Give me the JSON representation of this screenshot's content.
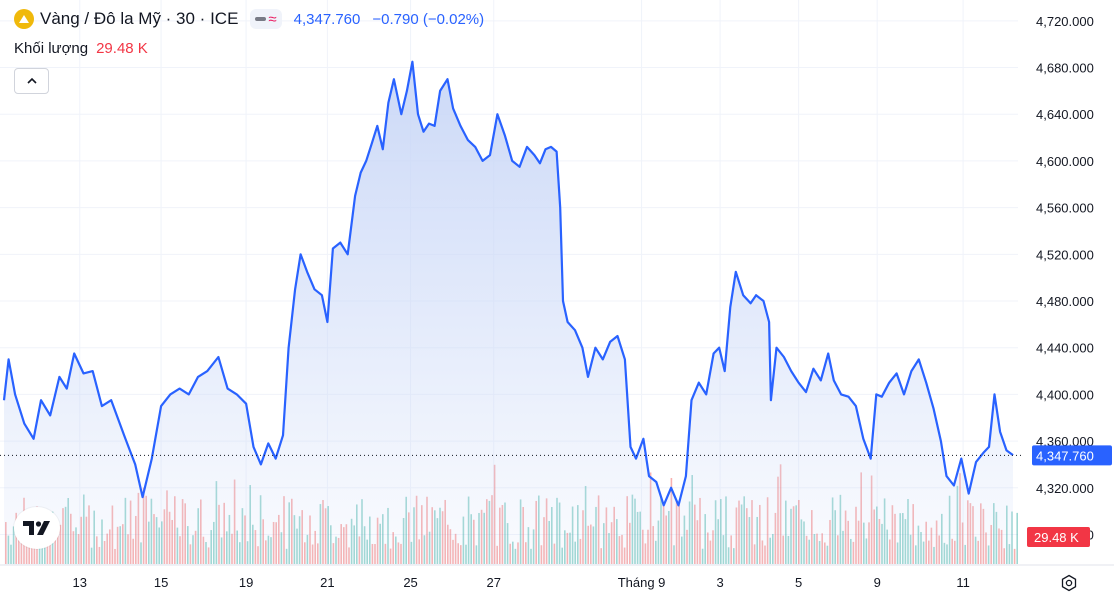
{
  "header": {
    "symbol": "Vàng / Đô la Mỹ · 30 · ICE",
    "price": "4,347.760",
    "change": "−0.790 (−0.02%)",
    "volume_label": "Khối lượng",
    "volume_value": "29.48 K"
  },
  "colors": {
    "line": "#2962ff",
    "area_top": "#c9d7f7",
    "vol_up": "#26a69a",
    "vol_down": "#ef5350",
    "price_tag": "#2962ff",
    "volume_tag": "#f23645",
    "grid": "#f0f3fa"
  },
  "icons": {
    "symbol": "gold-coin-icon",
    "collapse": "chevron-up-icon",
    "logo": "tradingview-logo-icon",
    "settings": "settings-icon"
  },
  "chart_data": {
    "type": "area",
    "x_tick_labels": [
      "13",
      "15",
      "19",
      "21",
      "25",
      "27",
      "Tháng 9",
      "3",
      "5",
      "9",
      "11"
    ],
    "y_tick_labels": [
      "4,720.000",
      "4,680.000",
      "4,640.000",
      "4,600.000",
      "4,560.000",
      "4,520.000",
      "4,480.000",
      "4,440.000",
      "4,400.000",
      "4,360.000",
      "4,320.000",
      "4,280.000"
    ],
    "ylim": [
      4271,
      4725
    ],
    "x_range": [
      0,
      10.92
    ],
    "grid": true,
    "last_price": 4347.76,
    "last_price_label": "4,347.760",
    "volume_label": "29.48 K",
    "series": [
      {
        "points": [
          [
            0,
            4395
          ],
          [
            0.05,
            4430
          ],
          [
            0.12,
            4400
          ],
          [
            0.22,
            4375
          ],
          [
            0.32,
            4362
          ],
          [
            0.4,
            4395
          ],
          [
            0.5,
            4382
          ],
          [
            0.6,
            4415
          ],
          [
            0.68,
            4405
          ],
          [
            0.76,
            4435
          ],
          [
            0.86,
            4418
          ],
          [
            0.96,
            4420
          ],
          [
            1.06,
            4390
          ],
          [
            1.16,
            4395
          ],
          [
            1.3,
            4365
          ],
          [
            1.42,
            4340
          ],
          [
            1.5,
            4312
          ],
          [
            1.6,
            4345
          ],
          [
            1.7,
            4390
          ],
          [
            1.8,
            4400
          ],
          [
            1.9,
            4405
          ],
          [
            2.0,
            4400
          ],
          [
            2.1,
            4415
          ],
          [
            2.2,
            4420
          ],
          [
            2.32,
            4432
          ],
          [
            2.42,
            4405
          ],
          [
            2.52,
            4400
          ],
          [
            2.62,
            4392
          ],
          [
            2.7,
            4355
          ],
          [
            2.78,
            4340
          ],
          [
            2.86,
            4358
          ],
          [
            2.94,
            4345
          ],
          [
            3.02,
            4365
          ],
          [
            3.08,
            4440
          ],
          [
            3.15,
            4490
          ],
          [
            3.21,
            4520
          ],
          [
            3.28,
            4505
          ],
          [
            3.36,
            4490
          ],
          [
            3.44,
            4485
          ],
          [
            3.5,
            4462
          ],
          [
            3.56,
            4525
          ],
          [
            3.64,
            4530
          ],
          [
            3.72,
            4520
          ],
          [
            3.8,
            4570
          ],
          [
            3.86,
            4590
          ],
          [
            3.92,
            4600
          ],
          [
            3.98,
            4615
          ],
          [
            4.04,
            4630
          ],
          [
            4.1,
            4610
          ],
          [
            4.16,
            4650
          ],
          [
            4.22,
            4670
          ],
          [
            4.3,
            4640
          ],
          [
            4.36,
            4660
          ],
          [
            4.42,
            4685
          ],
          [
            4.48,
            4640
          ],
          [
            4.54,
            4625
          ],
          [
            4.6,
            4632
          ],
          [
            4.66,
            4630
          ],
          [
            4.72,
            4660
          ],
          [
            4.8,
            4670
          ],
          [
            4.86,
            4645
          ],
          [
            4.94,
            4630
          ],
          [
            5.02,
            4618
          ],
          [
            5.1,
            4612
          ],
          [
            5.18,
            4600
          ],
          [
            5.26,
            4605
          ],
          [
            5.34,
            4640
          ],
          [
            5.42,
            4622
          ],
          [
            5.5,
            4600
          ],
          [
            5.58,
            4595
          ],
          [
            5.66,
            4612
          ],
          [
            5.74,
            4605
          ],
          [
            5.8,
            4598
          ],
          [
            5.86,
            4610
          ],
          [
            5.92,
            4612
          ],
          [
            5.98,
            4608
          ],
          [
            6.02,
            4560
          ],
          [
            6.05,
            4480
          ],
          [
            6.1,
            4462
          ],
          [
            6.18,
            4455
          ],
          [
            6.26,
            4440
          ],
          [
            6.32,
            4415
          ],
          [
            6.4,
            4440
          ],
          [
            6.48,
            4430
          ],
          [
            6.56,
            4445
          ],
          [
            6.64,
            4450
          ],
          [
            6.72,
            4430
          ],
          [
            6.78,
            4355
          ],
          [
            6.84,
            4345
          ],
          [
            6.92,
            4362
          ],
          [
            6.98,
            4330
          ],
          [
            7.06,
            4325
          ],
          [
            7.14,
            4305
          ],
          [
            7.22,
            4320
          ],
          [
            7.3,
            4305
          ],
          [
            7.38,
            4330
          ],
          [
            7.44,
            4395
          ],
          [
            7.52,
            4410
          ],
          [
            7.6,
            4400
          ],
          [
            7.68,
            4435
          ],
          [
            7.74,
            4440
          ],
          [
            7.8,
            4420
          ],
          [
            7.86,
            4475
          ],
          [
            7.92,
            4505
          ],
          [
            8.0,
            4485
          ],
          [
            8.08,
            4478
          ],
          [
            8.14,
            4485
          ],
          [
            8.22,
            4480
          ],
          [
            8.28,
            4462
          ],
          [
            8.3,
            4395
          ],
          [
            8.36,
            4440
          ],
          [
            8.44,
            4432
          ],
          [
            8.52,
            4420
          ],
          [
            8.6,
            4410
          ],
          [
            8.68,
            4402
          ],
          [
            8.76,
            4422
          ],
          [
            8.84,
            4412
          ],
          [
            8.92,
            4435
          ],
          [
            8.98,
            4412
          ],
          [
            9.06,
            4400
          ],
          [
            9.14,
            4398
          ],
          [
            9.22,
            4390
          ],
          [
            9.3,
            4362
          ],
          [
            9.38,
            4345
          ],
          [
            9.44,
            4400
          ],
          [
            9.5,
            4398
          ],
          [
            9.58,
            4410
          ],
          [
            9.66,
            4418
          ],
          [
            9.74,
            4400
          ],
          [
            9.82,
            4420
          ],
          [
            9.9,
            4430
          ],
          [
            9.98,
            4410
          ],
          [
            10.06,
            4388
          ],
          [
            10.14,
            4360
          ],
          [
            10.2,
            4330
          ],
          [
            10.28,
            4322
          ],
          [
            10.36,
            4345
          ],
          [
            10.44,
            4315
          ],
          [
            10.52,
            4342
          ],
          [
            10.6,
            4350
          ],
          [
            10.66,
            4355
          ],
          [
            10.72,
            4400
          ],
          [
            10.78,
            4368
          ],
          [
            10.85,
            4352
          ],
          [
            10.92,
            4348
          ]
        ]
      }
    ]
  }
}
